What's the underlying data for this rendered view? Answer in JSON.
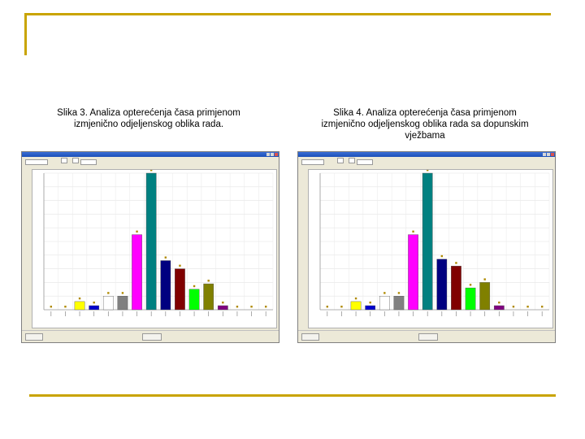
{
  "captions": {
    "left": "Slika 3. Analiza opterećenja časa primjenom\nizmjenično odjeljenskog oblika rada.",
    "right": "Slika 4. Analiza opterećenja časa primjenom\nizmjenično   odjeljenskog oblika rada sa dopunskim\nvježbama"
  },
  "chart_data": [
    {
      "type": "bar",
      "title": "",
      "ylim": [
        0,
        100
      ],
      "grid": true,
      "values": [
        0,
        0,
        6,
        3,
        10,
        10,
        55,
        100,
        36,
        30,
        15,
        19,
        3,
        0,
        0,
        0
      ],
      "colors": [
        "#ffff00",
        "#ffff00",
        "#ffff00",
        "#0000cc",
        "#ffffff",
        "#808080",
        "#ff00ff",
        "#008080",
        "#000080",
        "#800000",
        "#00ff00",
        "#808000",
        "#800080",
        "#c0c0c0",
        "#c0c0c0",
        "#c0c0c0"
      ]
    },
    {
      "type": "bar",
      "title": "",
      "ylim": [
        0,
        100
      ],
      "grid": true,
      "values": [
        0,
        0,
        6,
        3,
        10,
        10,
        55,
        100,
        37,
        32,
        16,
        20,
        3,
        0,
        0,
        0
      ],
      "colors": [
        "#ffff00",
        "#ffff00",
        "#ffff00",
        "#0000cc",
        "#ffffff",
        "#808080",
        "#ff00ff",
        "#008080",
        "#000080",
        "#800000",
        "#00ff00",
        "#808000",
        "#800080",
        "#c0c0c0",
        "#c0c0c0",
        "#c0c0c0"
      ]
    }
  ]
}
